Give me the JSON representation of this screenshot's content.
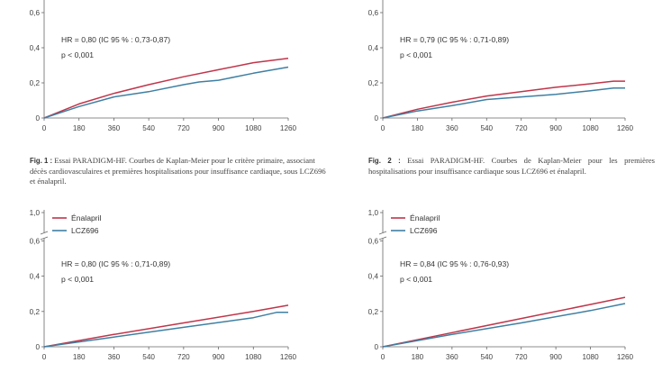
{
  "colors": {
    "enalapril": "#c0354a",
    "lcz696": "#3f7fa3",
    "axis": "#666666"
  },
  "captions": [
    {
      "fig": "Fig. 1 :",
      "text": "Essai PARADIGM-HF. Courbes de Kaplan-Meier pour le critère primaire, associant décès cardiovasculaires et premières hospitalisations pour insuffisance cardiaque, sous LCZ696 et énalapril."
    },
    {
      "fig": "Fig. 2 :",
      "text": "Essai PARADIGM-HF. Courbes de Kaplan-Meier pour les premières hospitalisations pour insuffisance cardiaque sous LCZ696 et énalapril."
    }
  ],
  "chart_data": [
    {
      "type": "line",
      "title": "",
      "x_ticks": [
        0,
        180,
        360,
        540,
        720,
        900,
        1080,
        1260
      ],
      "y_ticks": [
        "0",
        "0,2",
        "0,4",
        "0,6"
      ],
      "ylim": [
        0,
        0.6
      ],
      "axis_break": false,
      "annotation": {
        "hr": "HR = 0,80 (IC 95 % : 0,73-0,87)",
        "p": "p < 0,001"
      },
      "legend": [],
      "series": [
        {
          "key": "enalapril",
          "x": [
            0,
            180,
            360,
            540,
            720,
            900,
            1080,
            1260
          ],
          "y": [
            0,
            0.08,
            0.14,
            0.19,
            0.235,
            0.275,
            0.315,
            0.34
          ]
        },
        {
          "key": "lcz696",
          "x": [
            0,
            180,
            360,
            540,
            720,
            800,
            900,
            1080,
            1260
          ],
          "y": [
            0,
            0.065,
            0.12,
            0.15,
            0.19,
            0.205,
            0.215,
            0.255,
            0.29
          ]
        }
      ]
    },
    {
      "type": "line",
      "title": "",
      "x_ticks": [
        0,
        180,
        360,
        540,
        720,
        900,
        1080,
        1260
      ],
      "y_ticks": [
        "0",
        "0,2",
        "0,4",
        "0,6"
      ],
      "ylim": [
        0,
        0.6
      ],
      "axis_break": false,
      "annotation": {
        "hr": "HR = 0,79 (IC 95 % : 0,71-0,89)",
        "p": "p < 0,001"
      },
      "legend": [],
      "series": [
        {
          "key": "enalapril",
          "x": [
            0,
            180,
            360,
            540,
            720,
            900,
            1080,
            1200,
            1260
          ],
          "y": [
            0,
            0.05,
            0.09,
            0.125,
            0.15,
            0.175,
            0.195,
            0.21,
            0.21
          ]
        },
        {
          "key": "lcz696",
          "x": [
            0,
            180,
            360,
            540,
            720,
            900,
            1080,
            1200,
            1260
          ],
          "y": [
            0,
            0.04,
            0.07,
            0.105,
            0.12,
            0.135,
            0.155,
            0.17,
            0.17
          ]
        }
      ]
    },
    {
      "type": "line",
      "title": "",
      "x_ticks": [
        0,
        180,
        360,
        540,
        720,
        900,
        1080,
        1260
      ],
      "y_ticks": [
        "0",
        "0,2",
        "0,4",
        "0,6",
        "1,0"
      ],
      "ylim": [
        0,
        0.6
      ],
      "axis_break": true,
      "annotation": {
        "hr": "HR = 0,80 (IC 95 % : 0,71-0,89)",
        "p": "p < 0,001"
      },
      "legend": [
        {
          "key": "enalapril",
          "label": "Énalapril"
        },
        {
          "key": "lcz696",
          "label": "LCZ696"
        }
      ],
      "series": [
        {
          "key": "enalapril",
          "x": [
            0,
            360,
            720,
            1080,
            1260
          ],
          "y": [
            0,
            0.07,
            0.135,
            0.2,
            0.235
          ]
        },
        {
          "key": "lcz696",
          "x": [
            0,
            360,
            720,
            1080,
            1200,
            1260
          ],
          "y": [
            0,
            0.055,
            0.11,
            0.165,
            0.195,
            0.195
          ]
        }
      ]
    },
    {
      "type": "line",
      "title": "",
      "x_ticks": [
        0,
        180,
        360,
        540,
        720,
        900,
        1080,
        1260
      ],
      "y_ticks": [
        "0",
        "0,2",
        "0,4",
        "0,6",
        "1,0"
      ],
      "ylim": [
        0,
        0.6
      ],
      "axis_break": true,
      "annotation": {
        "hr": "HR = 0,84 (IC 95 % : 0,76-0,93)",
        "p": "p < 0,001"
      },
      "legend": [
        {
          "key": "enalapril",
          "label": "Énalapril"
        },
        {
          "key": "lcz696",
          "label": "LCZ696"
        }
      ],
      "series": [
        {
          "key": "enalapril",
          "x": [
            0,
            360,
            720,
            1080,
            1260
          ],
          "y": [
            0,
            0.08,
            0.16,
            0.24,
            0.28
          ]
        },
        {
          "key": "lcz696",
          "x": [
            0,
            360,
            720,
            1080,
            1260
          ],
          "y": [
            0,
            0.07,
            0.135,
            0.205,
            0.245
          ]
        }
      ]
    }
  ]
}
